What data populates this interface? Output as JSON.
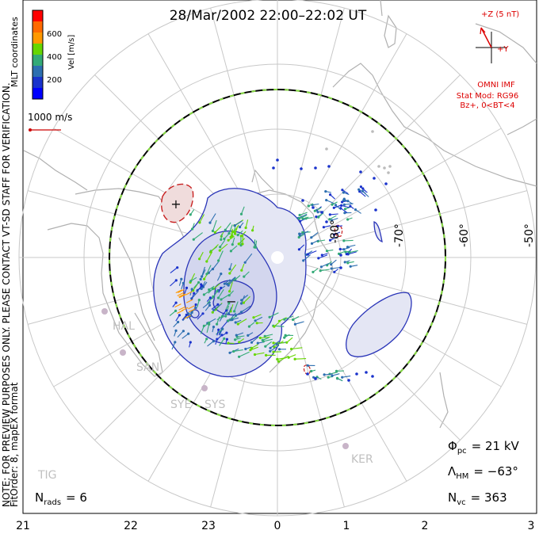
{
  "title": "28/Mar/2002 22:00–22:02 UT",
  "colorbar": {
    "unit_label": "Vel [m/s]",
    "ticks": [
      "600",
      "400",
      "200"
    ],
    "colors": [
      "#ff0000",
      "#ff6a00",
      "#ff9900",
      "#66d600",
      "#33aa77",
      "#2d6fb0",
      "#1a33cc",
      "#0000ff"
    ],
    "coords_label": "MLT coordinates"
  },
  "reference_vector": {
    "label": "1000 m/s",
    "color": "#cc0000"
  },
  "imf": {
    "z_label": "+Z (5 nT)",
    "y_label": "+Y",
    "source": "OMNI IMF",
    "model_line1": "Stat Mod: RG96",
    "model_line2": "Bz+, 0<BT<4",
    "color": "#dd0000"
  },
  "side_note": {
    "line1": "NOTE: FOR PREVIEW PURPOSES ONLY. PLEASE CONTACT VT-SD STAFF FOR VERIFICATION.",
    "line2": "FitOrder: 8, mapEX format"
  },
  "latitude_labels": [
    "-80°",
    "-70°",
    "-60°",
    "-50°"
  ],
  "mlt_labels": [
    "21",
    "22",
    "23",
    "0",
    "1",
    "2",
    "3"
  ],
  "stations": [
    "HAL",
    "SAN",
    "SYE",
    "SYS",
    "KER",
    "TIG"
  ],
  "stats": {
    "phi_symbol": "Φ",
    "phi_sub": "pc",
    "phi_value": "= 21 kV",
    "lambda_symbol": "Λ",
    "lambda_sub": "HM",
    "lambda_value": "= −63°",
    "nvc_symbol": "N",
    "nvc_sub": "vc",
    "nvc_value": "= 363",
    "nrads_symbol": "N",
    "nrads_sub": "rads",
    "nrads_value": "= 6"
  },
  "potential_signs": {
    "negative": "−",
    "positive": "+"
  }
}
